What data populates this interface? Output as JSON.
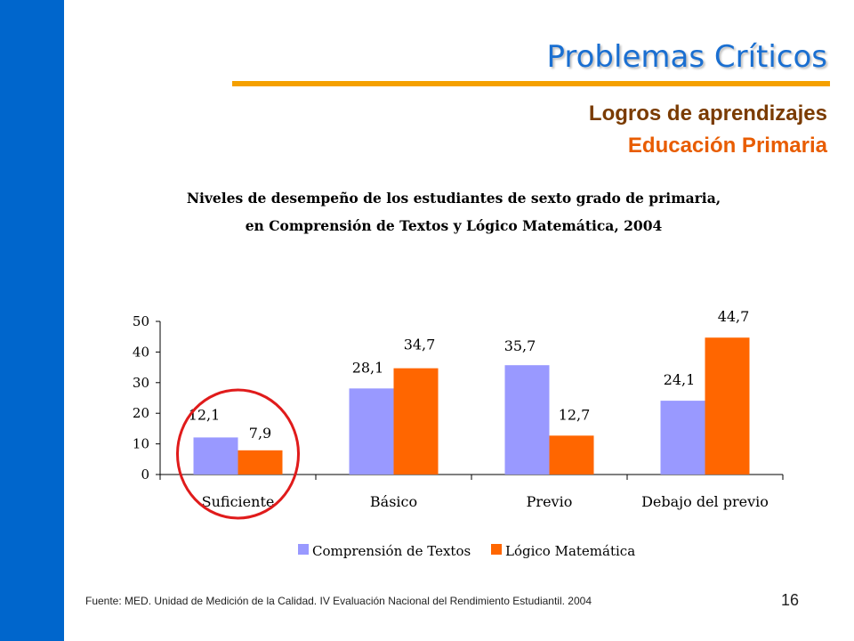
{
  "slide": {
    "title": "Problemas Críticos",
    "subtitle_line1": "Logros de aprendizajes",
    "subtitle_line2": "Educación Primaria",
    "source": "Fuente: MED. Unidad de Medición de la Calidad. IV Evaluación Nacional del Rendimiento Estudiantil. 2004",
    "page_number": "16"
  },
  "colors": {
    "side_bar": "#0066cc",
    "title": "#1a6fd1",
    "rule": "#f5a000",
    "subtitle1": "#7a3b00",
    "subtitle2": "#e85c00",
    "series_a": "#9999ff",
    "series_b": "#ff6600",
    "highlight_circle": "#e01b1b"
  },
  "chart_data": {
    "type": "bar",
    "title_line1": "Niveles de desempeño de los estudiantes de sexto grado de primaria,",
    "title_line2": "en Comprensión de Textos y Lógico Matemática, 2004",
    "categories": [
      "Suficiente",
      "Básico",
      "Previo",
      "Debajo del previo"
    ],
    "series": [
      {
        "name": "Comprensión de Textos",
        "values": [
          12.1,
          28.1,
          35.7,
          24.1
        ],
        "labels": [
          "12,1",
          "28,1",
          "35,7",
          "24,1"
        ]
      },
      {
        "name": "Lógico Matemática",
        "values": [
          7.9,
          34.7,
          12.7,
          44.7
        ],
        "labels": [
          "7,9",
          "34,7",
          "12,7",
          "44,7"
        ]
      }
    ],
    "y_ticks": [
      0,
      10,
      20,
      30,
      40,
      50
    ],
    "y_tick_labels": [
      "0",
      "10",
      "20",
      "30",
      "40",
      "50"
    ],
    "ylim": [
      0,
      50
    ],
    "xlabel": "",
    "ylabel": "",
    "grid": false,
    "legend_position": "bottom",
    "highlighted_category": "Suficiente"
  }
}
